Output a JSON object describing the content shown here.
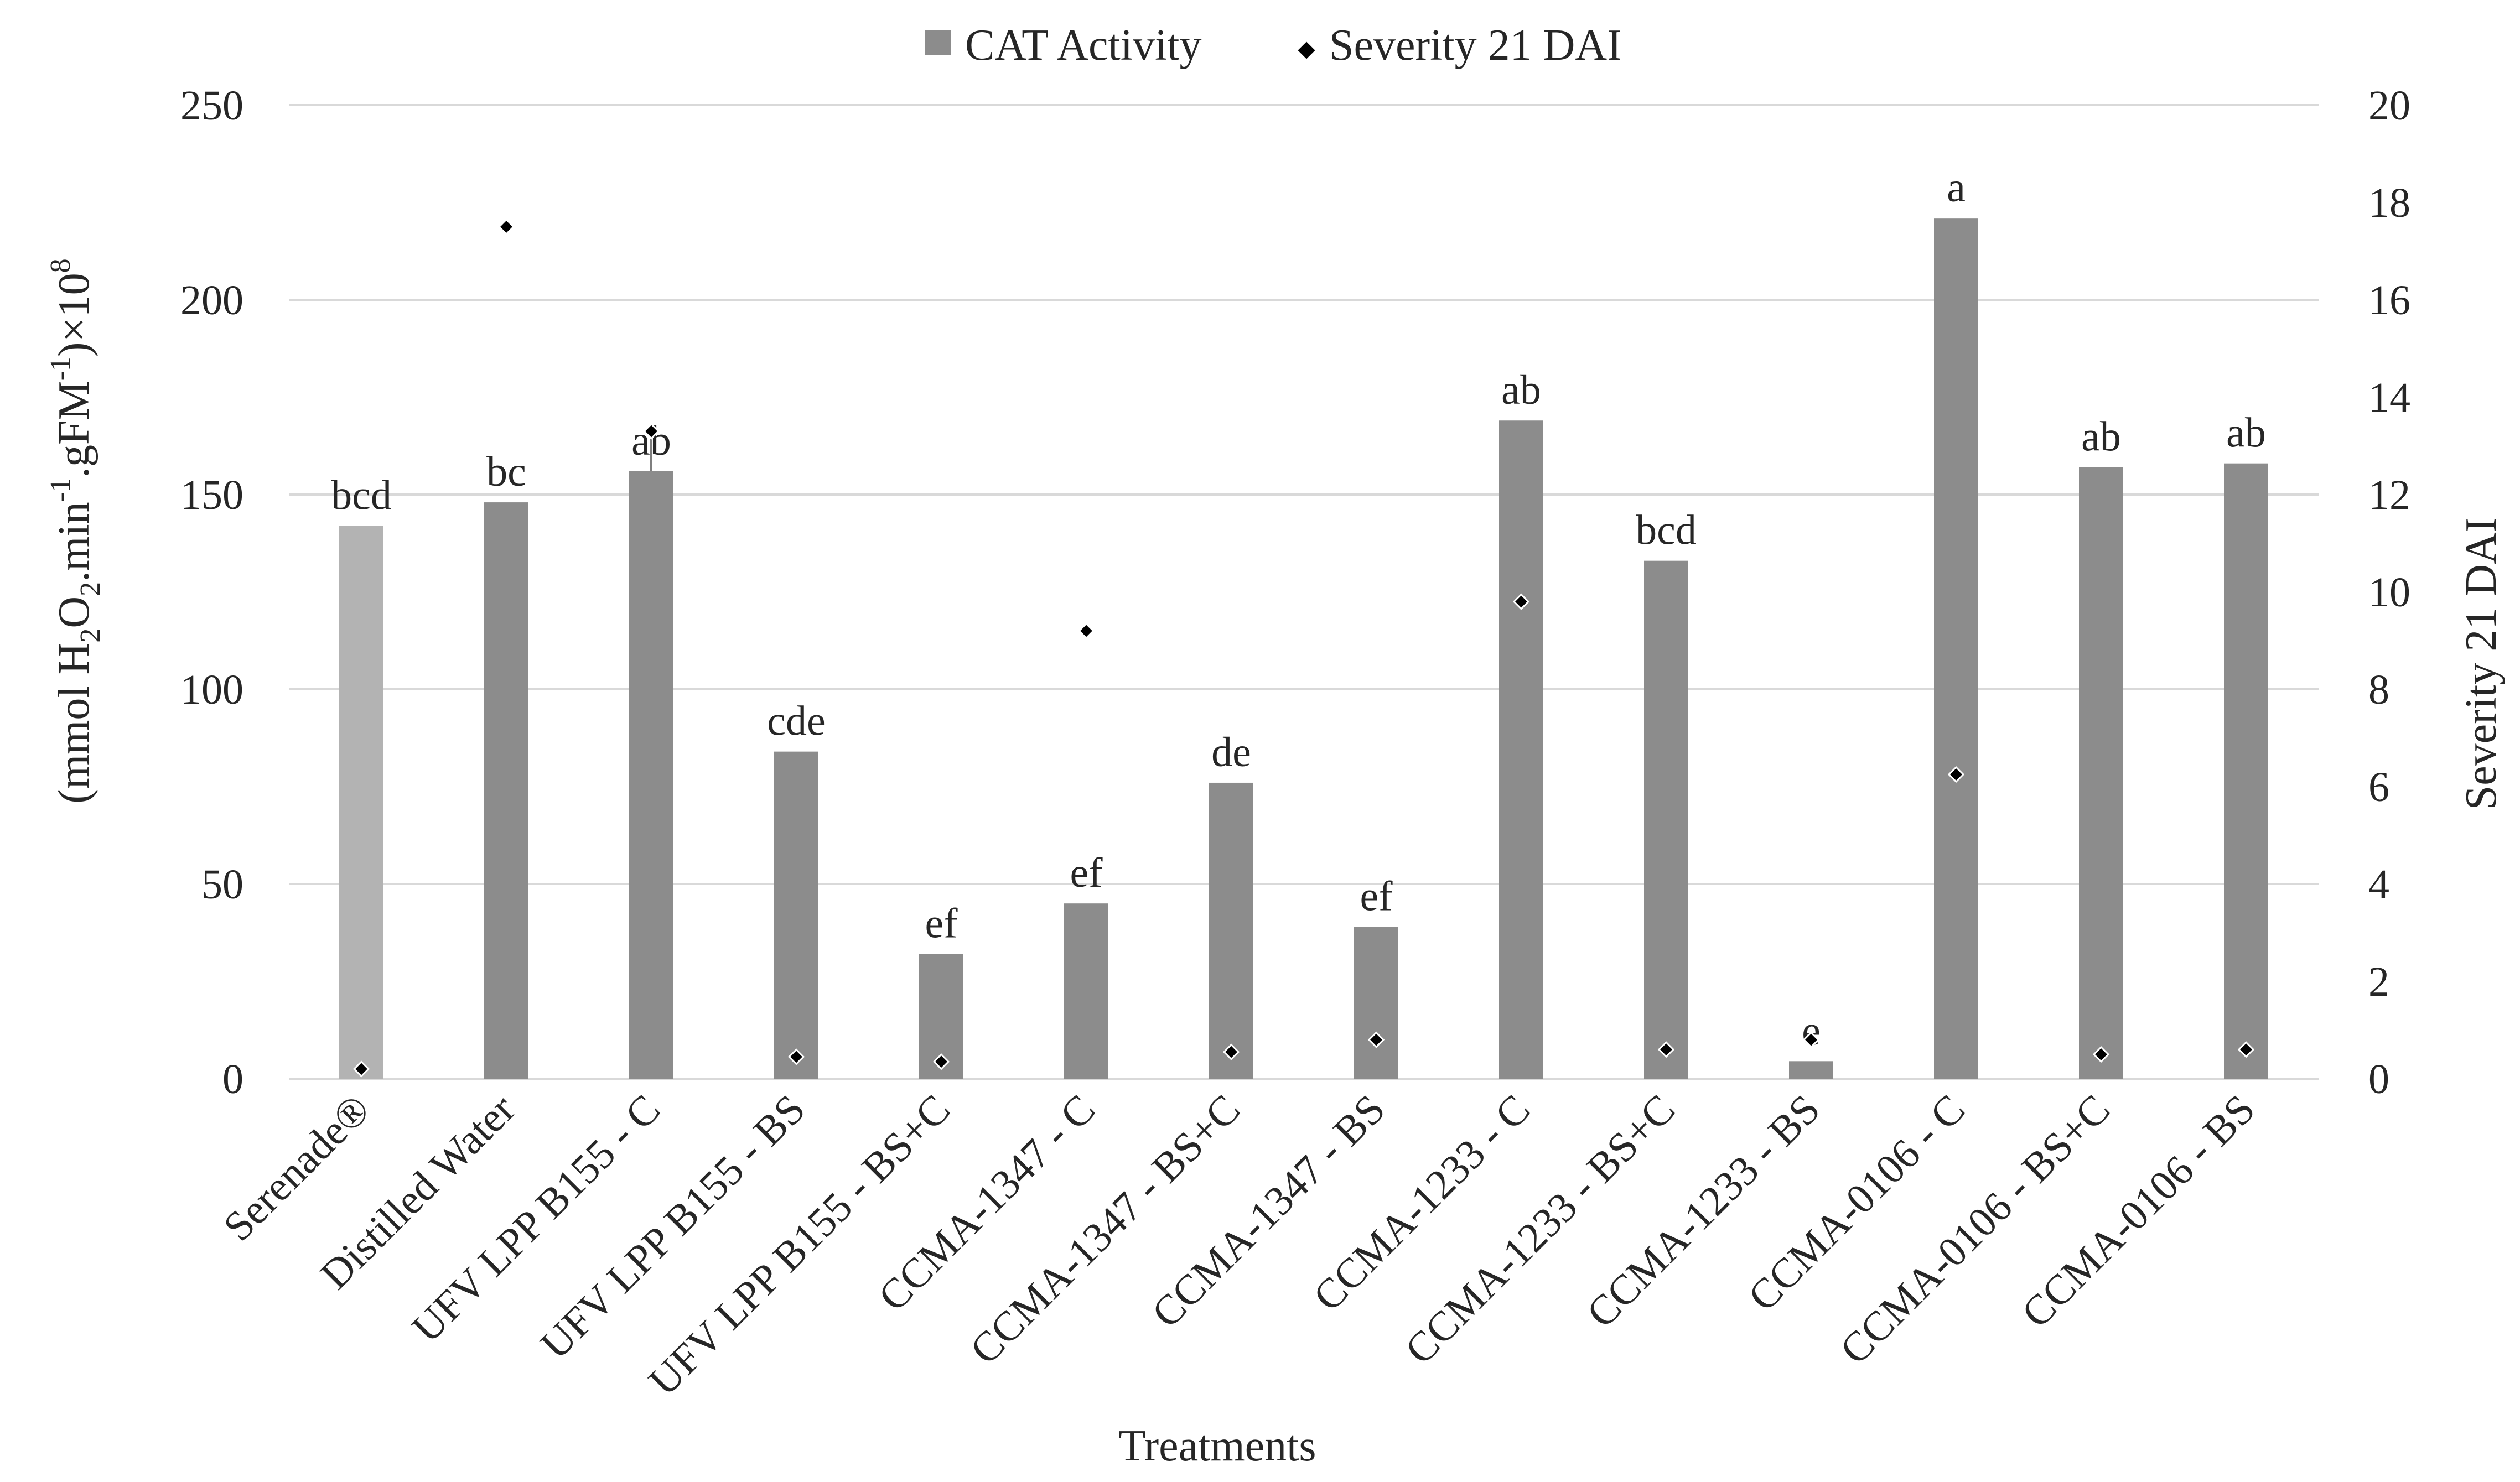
{
  "chart_data": {
    "type": "bar",
    "title": "",
    "xlabel": "Treatments",
    "ylabel_parts": {
      "open": "(mmol H",
      "sub1": "2",
      "o": "O",
      "sub2": "2",
      "mid": ".min",
      "sup1": "-1",
      "gfm": ".gFM",
      "sup2": "-1",
      "close": ")×10",
      "sup3": "8"
    },
    "y2label": "Severity 21 DAI",
    "ylim": [
      0,
      250
    ],
    "y_ticks": [
      0,
      50,
      100,
      150,
      200,
      250
    ],
    "y2lim": [
      0,
      20
    ],
    "y2_ticks": [
      0,
      2,
      4,
      6,
      8,
      10,
      12,
      14,
      16,
      18,
      20
    ],
    "grid": true,
    "legend_position": "top-center",
    "categories": [
      "Serenade®",
      "Distilled Water",
      "UFV LPP B155 - C",
      "UFV LPP B155 - BS",
      "UFV LPP B155 - BS+C",
      "CCMA-1347 - C",
      "CCMA-1347 - BS+C",
      "CCMA-1347 - BS",
      "CCMA-1233 - C",
      "CCMA-1233 - BS+C",
      "CCMA-1233 - BS",
      "CCMA-0106 - C",
      "CCMA-0106 - BS+C",
      "CCMA-0106 - BS"
    ],
    "series": [
      {
        "name": "CAT Activity",
        "type": "bar",
        "axis": "left",
        "color": "#8c8c8c",
        "highlight_color": "#b3b3b3",
        "highlight_index": 0,
        "values": [
          142,
          148,
          156,
          84,
          32,
          45,
          76,
          39,
          169,
          133,
          4.5,
          221,
          157,
          158
        ],
        "labels": [
          "bcd",
          "bc",
          "ab",
          "cde",
          "ef",
          "ef",
          "de",
          "ef",
          "ab",
          "bcd",
          "e",
          "a",
          "ab",
          "ab"
        ]
      },
      {
        "name": "Severity 21 DAI",
        "type": "scatter",
        "axis": "right",
        "color": "#000000",
        "values": [
          0.2,
          17.5,
          13.3,
          0.45,
          0.35,
          9.2,
          0.55,
          0.8,
          9.8,
          0.6,
          0.8,
          6.25,
          0.5,
          0.6
        ]
      }
    ]
  }
}
